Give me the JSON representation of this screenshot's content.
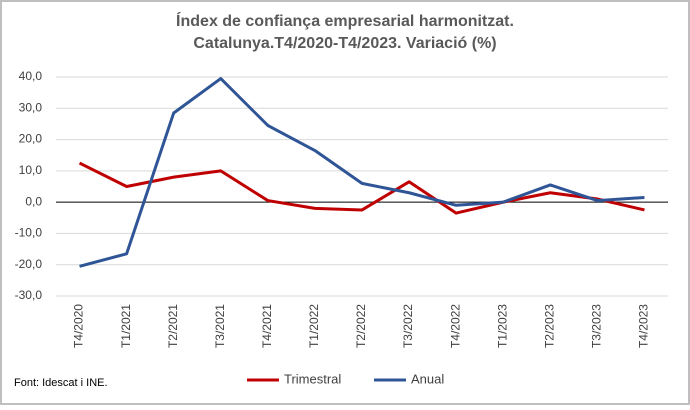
{
  "chart_data": {
    "type": "line",
    "title": [
      "Índex de confiança empresarial harmonitzat.",
      "Catalunya.T4/2020-T4/2023. Variació (%)"
    ],
    "categories": [
      "T4/2020",
      "T1/2021",
      "T2/2021",
      "T3/2021",
      "T4/2021",
      "T1/2022",
      "T2/2022",
      "T3/2022",
      "T4/2022",
      "T1/2023",
      "T2/2023",
      "T3/2023",
      "T4/2023"
    ],
    "series": [
      {
        "name": "Trimestral",
        "color": "#c00000",
        "values": [
          12.5,
          5,
          8,
          10,
          0.5,
          -2,
          -2.5,
          6.5,
          -3.5,
          0,
          3,
          1,
          -2.5
        ]
      },
      {
        "name": "Anual",
        "color": "#2f5597",
        "values": [
          -20.5,
          -16.5,
          28.5,
          39.5,
          24.5,
          16.5,
          6,
          3,
          -1,
          0,
          5.5,
          0.5,
          1.5
        ]
      }
    ],
    "ylim": [
      -30,
      40
    ],
    "yticks": [
      {
        "value": -30,
        "label": "-30,0"
      },
      {
        "value": -20,
        "label": "-20,0"
      },
      {
        "value": -10,
        "label": "-10,0"
      },
      {
        "value": 0,
        "label": "0,0"
      },
      {
        "value": 10,
        "label": "10,0"
      },
      {
        "value": 20,
        "label": "20,0"
      },
      {
        "value": 30,
        "label": "30,0"
      },
      {
        "value": 40,
        "label": "40,0"
      }
    ],
    "grid": true,
    "legend": "bottom",
    "source": "Font: Idescat i INE."
  }
}
